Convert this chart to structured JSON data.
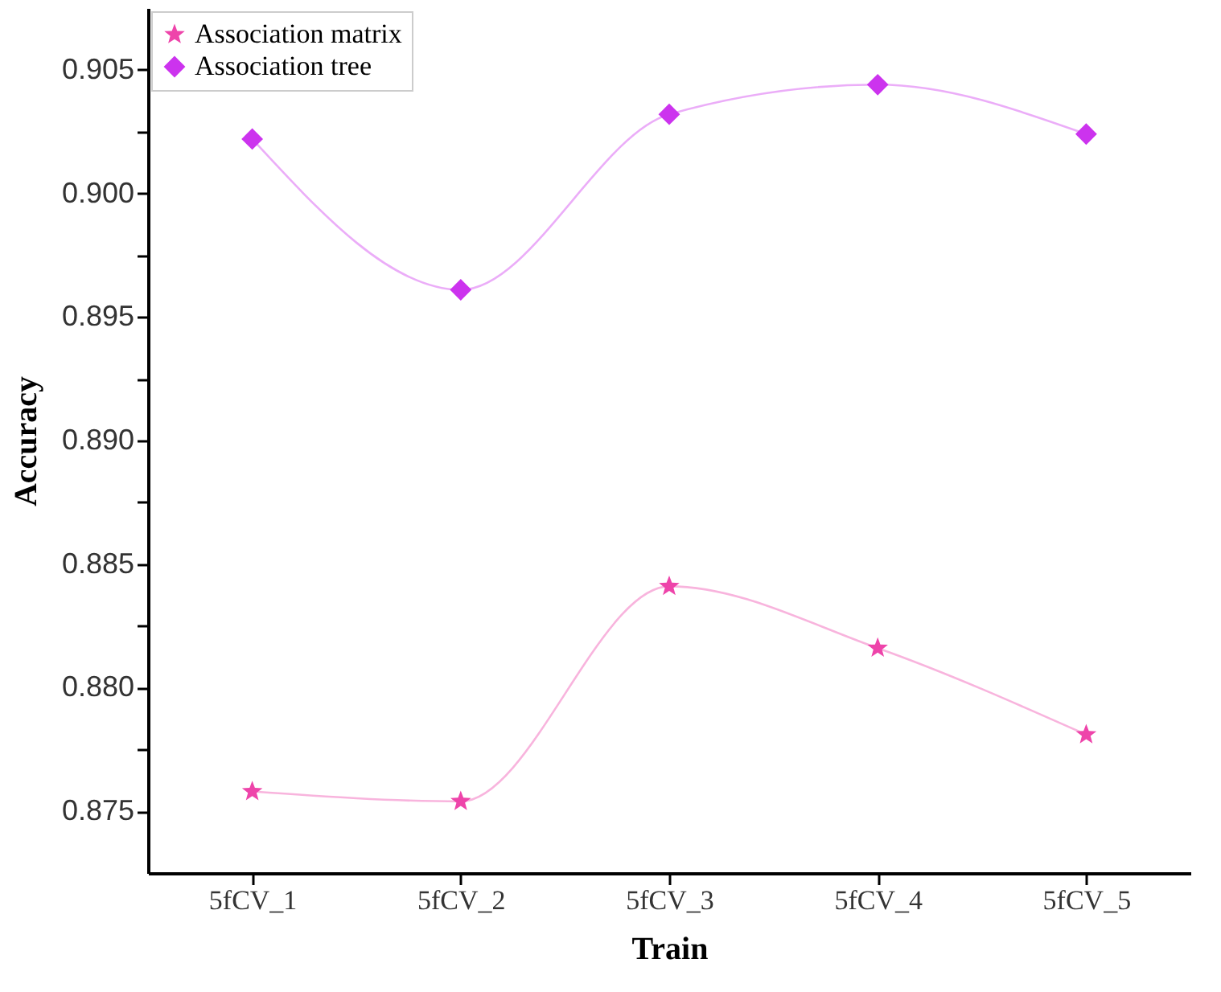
{
  "chart_data": {
    "type": "line",
    "xlabel": "Train",
    "ylabel": "Accuracy",
    "categories": [
      "5fCV_1",
      "5fCV_2",
      "5fCV_3",
      "5fCV_4",
      "5fCV_5"
    ],
    "series": [
      {
        "name": "Association matrix",
        "color": "#ee44aa",
        "marker": "star",
        "values": [
          0.8758,
          0.8754,
          0.8841,
          0.8816,
          0.8781
        ]
      },
      {
        "name": "Association tree",
        "color": "#cc33ee",
        "marker": "diamond",
        "values": [
          0.9022,
          0.8961,
          0.9032,
          0.9044,
          0.9024
        ]
      }
    ],
    "ylim": [
      0.8725,
      0.9075
    ],
    "yticks": [
      {
        "value": 0.875,
        "label": "0.875"
      },
      {
        "value": 0.8775,
        "label": null
      },
      {
        "value": 0.88,
        "label": "0.880"
      },
      {
        "value": 0.8825,
        "label": null
      },
      {
        "value": 0.885,
        "label": "0.885"
      },
      {
        "value": 0.8875,
        "label": null
      },
      {
        "value": 0.89,
        "label": "0.890"
      },
      {
        "value": 0.8925,
        "label": null
      },
      {
        "value": 0.895,
        "label": "0.895"
      },
      {
        "value": 0.8975,
        "label": null
      },
      {
        "value": 0.9,
        "label": "0.900"
      },
      {
        "value": 0.9025,
        "label": null
      },
      {
        "value": 0.905,
        "label": "0.905"
      }
    ],
    "legend": "top left",
    "grid": false
  }
}
